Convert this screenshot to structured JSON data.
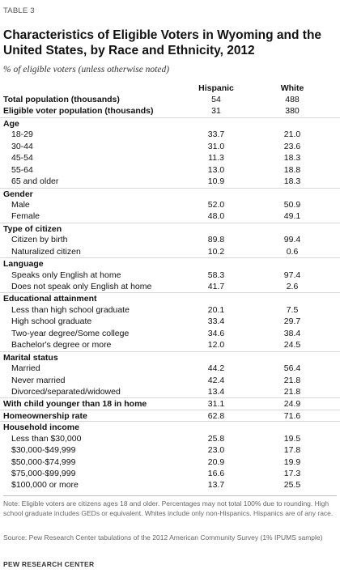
{
  "header": {
    "table_label": "TABLE 3",
    "title": "Characteristics of Eligible Voters in Wyoming and the United States, by Race and Ethnicity, 2012",
    "subtitle": "% of eligible voters (unless otherwise noted)",
    "col1": "Hispanic",
    "col2": "White"
  },
  "rows": [
    {
      "label": "Total population (thousands)",
      "v1": "54",
      "v2": "488",
      "type": "bold"
    },
    {
      "label": "Eligible voter population (thousands)",
      "v1": "31",
      "v2": "380",
      "type": "bold"
    },
    {
      "label": "Age",
      "v1": "",
      "v2": "",
      "type": "section"
    },
    {
      "label": "18-29",
      "v1": "33.7",
      "v2": "21.0",
      "type": "indent"
    },
    {
      "label": "30-44",
      "v1": "31.0",
      "v2": "23.6",
      "type": "indent"
    },
    {
      "label": "45-54",
      "v1": "11.3",
      "v2": "18.3",
      "type": "indent"
    },
    {
      "label": "55-64",
      "v1": "13.0",
      "v2": "18.8",
      "type": "indent"
    },
    {
      "label": "65 and older",
      "v1": "10.9",
      "v2": "18.3",
      "type": "indent"
    },
    {
      "label": "Gender",
      "v1": "",
      "v2": "",
      "type": "section"
    },
    {
      "label": "Male",
      "v1": "52.0",
      "v2": "50.9",
      "type": "indent"
    },
    {
      "label": "Female",
      "v1": "48.0",
      "v2": "49.1",
      "type": "indent"
    },
    {
      "label": "Type of citizen",
      "v1": "",
      "v2": "",
      "type": "section"
    },
    {
      "label": "Citizen by birth",
      "v1": "89.8",
      "v2": "99.4",
      "type": "indent"
    },
    {
      "label": "Naturalized citizen",
      "v1": "10.2",
      "v2": "0.6",
      "type": "indent"
    },
    {
      "label": "Language",
      "v1": "",
      "v2": "",
      "type": "section"
    },
    {
      "label": "Speaks only English at home",
      "v1": "58.3",
      "v2": "97.4",
      "type": "indent"
    },
    {
      "label": "Does not speak only English at home",
      "v1": "41.7",
      "v2": "2.6",
      "type": "indent"
    },
    {
      "label": "Educational attainment",
      "v1": "",
      "v2": "",
      "type": "section"
    },
    {
      "label": "Less than high school graduate",
      "v1": "20.1",
      "v2": "7.5",
      "type": "indent"
    },
    {
      "label": "High school graduate",
      "v1": "33.4",
      "v2": "29.7",
      "type": "indent"
    },
    {
      "label": "Two-year degree/Some college",
      "v1": "34.6",
      "v2": "38.4",
      "type": "indent"
    },
    {
      "label": "Bachelor's degree or more",
      "v1": "12.0",
      "v2": "24.5",
      "type": "indent"
    },
    {
      "label": "Marital status",
      "v1": "",
      "v2": "",
      "type": "section"
    },
    {
      "label": "Married",
      "v1": "44.2",
      "v2": "56.4",
      "type": "indent"
    },
    {
      "label": "Never married",
      "v1": "42.4",
      "v2": "21.8",
      "type": "indent"
    },
    {
      "label": "Divorced/separated/widowed",
      "v1": "13.4",
      "v2": "21.8",
      "type": "indent"
    },
    {
      "label": "With child younger than 18 in home",
      "v1": "31.1",
      "v2": "24.9",
      "type": "section"
    },
    {
      "label": "Homeownership rate",
      "v1": "62.8",
      "v2": "71.6",
      "type": "section"
    },
    {
      "label": "Household income",
      "v1": "",
      "v2": "",
      "type": "section"
    },
    {
      "label": "Less than $30,000",
      "v1": "25.8",
      "v2": "19.5",
      "type": "indent"
    },
    {
      "label": "$30,000-$49,999",
      "v1": "23.0",
      "v2": "17.8",
      "type": "indent"
    },
    {
      "label": "$50,000-$74,999",
      "v1": "20.9",
      "v2": "19.9",
      "type": "indent"
    },
    {
      "label": "$75,000-$99,999",
      "v1": "16.6",
      "v2": "17.3",
      "type": "indent"
    },
    {
      "label": "$100,000 or more",
      "v1": "13.7",
      "v2": "25.5",
      "type": "indent"
    }
  ],
  "footer": {
    "note": "Note: Eligible voters are citizens ages 18 and older. Percentages may not total 100% due to rounding. High school graduate includes GEDs or equivalent. Whites include only non-Hispanics. Hispanics are of any race.",
    "source": "Source: Pew Research Center tabulations of the 2012 American Community Survey (1% IPUMS sample)",
    "credit": "PEW RESEARCH CENTER"
  }
}
